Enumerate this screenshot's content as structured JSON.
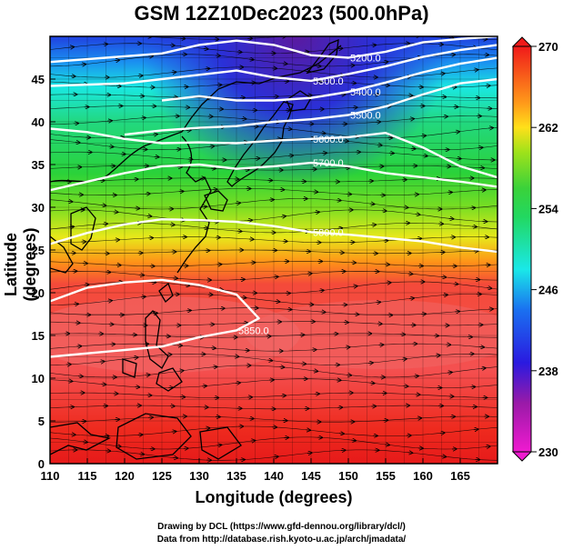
{
  "title": "GSM 12Z10Dec2023 (500.0hPa)",
  "xlabel": "Longitude (degrees)",
  "ylabel": "Latitude  (degrees)",
  "credit_line1": "Drawing by DCL (https://www.gfd-dennou.org/library/dcl/)",
  "credit_line2": "Data from http://database.rish.kyoto-u.ac.jp/arch/jmadata/",
  "x_ticks": [
    "110",
    "115",
    "120",
    "125",
    "130",
    "135",
    "140",
    "145",
    "150",
    "155",
    "160",
    "165"
  ],
  "y_ticks": [
    "0",
    "5",
    "10",
    "15",
    "20",
    "25",
    "30",
    "35",
    "40",
    "45"
  ],
  "colorbar_ticks": [
    "270",
    "262",
    "254",
    "246",
    "238",
    "230"
  ],
  "contour_labels": [
    "5300.0",
    "5400.0",
    "5500.0",
    "5600.0",
    "5700.0",
    "5800.0",
    "5850.0",
    "5200.0"
  ],
  "colors": {
    "warm": "#e83a2a",
    "orange": "#ff8c1a",
    "yellow": "#e8e81a",
    "green": "#3ad23a",
    "cyan": "#1ae8e8",
    "blue": "#1a3ae8",
    "purple": "#5a1aa8",
    "contour": "#ffffff",
    "coast": "#000000"
  },
  "chart_data": {
    "type": "heatmap",
    "description_of_field": "500 hPa temperature (K) shaded, geopotential height contours, wind streamlines",
    "xlim": [
      110,
      170
    ],
    "ylim": [
      0,
      50
    ],
    "colorbar_range": [
      230,
      270
    ],
    "contours": [
      {
        "level": "5200.0",
        "lon": [
          110,
          125,
          130,
          135,
          140,
          145,
          150,
          155,
          160,
          165,
          170
        ],
        "lat": [
          47,
          48,
          49,
          49.5,
          49,
          47.8,
          47.5,
          48.2,
          49.3,
          49.7,
          50
        ]
      },
      {
        "level": "5300.0",
        "lon": [
          110,
          120,
          125,
          130,
          135,
          140,
          145,
          150,
          155,
          160,
          165,
          170
        ],
        "lat": [
          44.2,
          44.5,
          45,
          45.5,
          46,
          45.2,
          44.8,
          45.6,
          46.5,
          47.6,
          48.4,
          49
        ]
      },
      {
        "level": "5400.0",
        "lon": [
          125,
          130,
          135,
          140,
          145,
          150,
          155,
          160,
          165,
          170
        ],
        "lat": [
          42.5,
          43,
          42.5,
          42.5,
          42.8,
          43.5,
          44.6,
          45.8,
          46.8,
          47.5
        ]
      },
      {
        "level": "5500.0",
        "lon": [
          120,
          125,
          130,
          135,
          140,
          145,
          150,
          155,
          160,
          165,
          170
        ],
        "lat": [
          38.5,
          39,
          39.3,
          39.5,
          40,
          40.3,
          40.8,
          41.8,
          43.2,
          44.5,
          45
        ]
      },
      {
        "level": "5600.0",
        "lon": [
          110,
          115,
          120,
          125,
          130,
          135,
          140,
          145,
          150,
          155,
          160,
          165,
          170
        ],
        "lat": [
          39.2,
          38.8,
          38,
          37.5,
          37.6,
          37.5,
          37.8,
          38,
          38.2,
          38.7,
          37,
          34.8,
          33.5
        ]
      },
      {
        "level": "5700.0",
        "lon": [
          110,
          115,
          120,
          125,
          130,
          135,
          140,
          145,
          150,
          155,
          160,
          165,
          170
        ],
        "lat": [
          32,
          33,
          34,
          34.8,
          35,
          34.5,
          34.8,
          35.2,
          34.8,
          34,
          33.5,
          33,
          32.4
        ]
      },
      {
        "level": "5800.0",
        "lon": [
          110,
          115,
          120,
          125,
          130,
          135,
          140,
          145,
          150,
          155,
          160,
          165,
          170
        ],
        "lat": [
          25.7,
          27,
          28,
          28.6,
          28.5,
          28.3,
          27.8,
          27.1,
          26.8,
          26.4,
          26,
          25.3,
          24.8
        ]
      },
      {
        "level": "5850.0",
        "lon": [
          110,
          115,
          120,
          125,
          130,
          135,
          138,
          135,
          130,
          125,
          120,
          115,
          110
        ],
        "lat": [
          19,
          20.6,
          21.2,
          21.5,
          20.9,
          19.8,
          17,
          15.6,
          14.8,
          13.7,
          13.3,
          12.9,
          12.5
        ]
      }
    ]
  }
}
